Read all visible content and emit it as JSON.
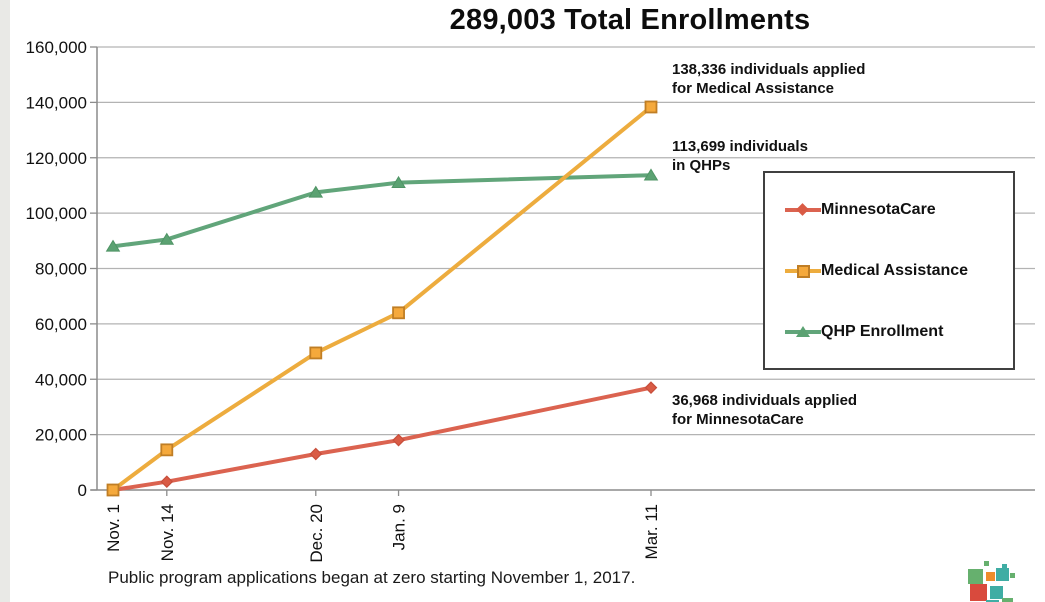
{
  "title": "289,003 Total Enrollments",
  "footnote": "Public program applications began at zero starting November 1, 2017.",
  "annotations": {
    "medical_assistance": {
      "line1": "138,336 individuals applied",
      "line2": "for Medical Assistance"
    },
    "qhp": {
      "line1": "113,699 individuals",
      "line2": "in QHPs"
    },
    "minnesotacare": {
      "line1": "36,968 individuals applied",
      "line2": "for MinnesotaCare"
    }
  },
  "legend": {
    "items": [
      {
        "label": "MinnesotaCare",
        "marker": "diamond",
        "color": "#db6350",
        "marker_fill": "#d95b45",
        "marker_stroke": "#c74e3b"
      },
      {
        "label": "Medical Assistance",
        "marker": "square",
        "color": "#edac3e",
        "marker_fill": "#f5a93c",
        "marker_stroke": "#c07e25"
      },
      {
        "label": "QHP Enrollment",
        "marker": "triangle",
        "color": "#61a57a",
        "marker_fill": "#5ba272",
        "marker_stroke": "#4f9465"
      }
    ]
  },
  "chart_data": {
    "type": "line",
    "title": "289,003 Total Enrollments",
    "categories": [
      "Nov. 1",
      "Nov. 14",
      "Dec. 20",
      "Jan. 9",
      "Mar. 11"
    ],
    "x_days": [
      0,
      13,
      49,
      69,
      130
    ],
    "series": [
      {
        "name": "MinnesotaCare",
        "marker": "diamond",
        "color": "#db6350",
        "marker_fill": "#d95b45",
        "marker_stroke": "#c74e3b",
        "values": [
          0,
          3000,
          13000,
          18000,
          36968
        ]
      },
      {
        "name": "Medical Assistance",
        "marker": "square",
        "color": "#edac3e",
        "marker_fill": "#f5a93c",
        "marker_stroke": "#c07e25",
        "values": [
          0,
          14500,
          49500,
          64000,
          138336
        ]
      },
      {
        "name": "QHP Enrollment",
        "marker": "triangle",
        "color": "#61a57a",
        "marker_fill": "#5ba272",
        "marker_stroke": "#4f9465",
        "values": [
          88000,
          90500,
          107500,
          111000,
          113699
        ]
      }
    ],
    "ylim": [
      0,
      160000
    ],
    "ytick_step": 20000,
    "ytick_labels": [
      "0",
      "20,000",
      "40,000",
      "60,000",
      "80,000",
      "100,000",
      "120,000",
      "140,000",
      "160,000"
    ],
    "grid": true,
    "legend_position": "right",
    "xlabel": "",
    "ylabel": ""
  },
  "colors": {
    "gridline": "#b3b3b3",
    "axis": "#8c8c8c",
    "text": "#111111",
    "legend_border": "#404040"
  },
  "logo": {
    "name": "mnsure-logo",
    "colors": {
      "teal": "#3fada4",
      "green": "#66b06e",
      "orange": "#ee8d2b",
      "red": "#d94a3d"
    }
  }
}
